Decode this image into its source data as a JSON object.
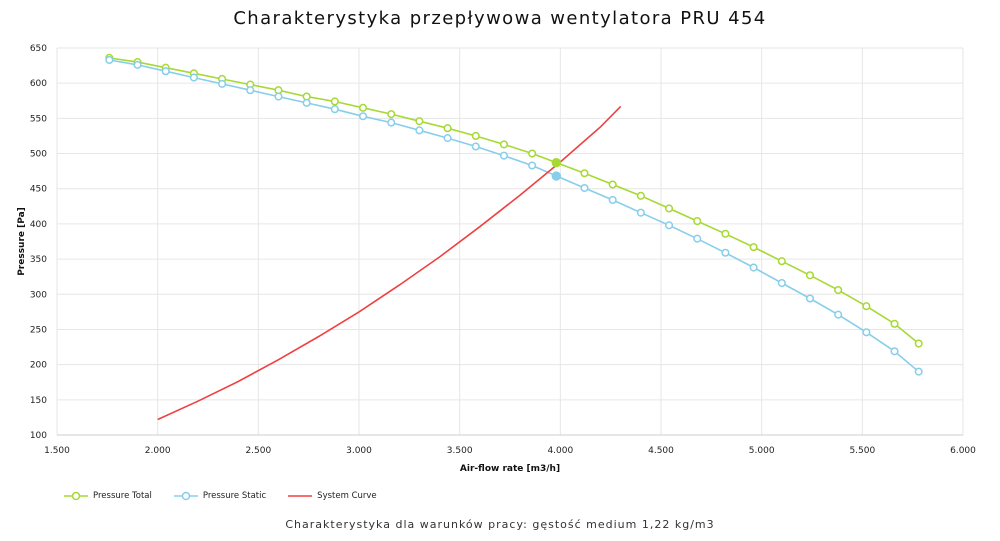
{
  "chart_data": {
    "type": "line",
    "title": "Charakterystyka przepływowa wentylatora PRU 454",
    "subtitle": "Charakterystyka dla warunków pracy: gęstość medium 1,22 kg/m3",
    "xlabel": "Air-flow rate [m3/h]",
    "ylabel": "Pressure [Pa]",
    "xlim": [
      1500,
      6000
    ],
    "ylim": [
      100,
      650
    ],
    "x_ticks": [
      1500,
      2000,
      2500,
      3000,
      3500,
      4000,
      4500,
      5000,
      5500,
      6000
    ],
    "x_tick_labels": [
      "1.500",
      "2.000",
      "2.500",
      "3.000",
      "3.500",
      "4.000",
      "4.500",
      "5.000",
      "5.500",
      "6.000"
    ],
    "y_ticks": [
      100,
      150,
      200,
      250,
      300,
      350,
      400,
      450,
      500,
      550,
      600,
      650
    ],
    "y_tick_labels": [
      "100",
      "150",
      "200",
      "250",
      "300",
      "350",
      "400",
      "450",
      "500",
      "550",
      "600",
      "650"
    ],
    "grid": true,
    "legend_position": "bottom-left",
    "series": [
      {
        "name": "Pressure Total",
        "color": "#a6d933",
        "marker": "circle",
        "x": [
          1760,
          1900,
          2040,
          2180,
          2320,
          2460,
          2600,
          2740,
          2880,
          3020,
          3160,
          3300,
          3440,
          3580,
          3720,
          3860,
          4120,
          4260,
          4400,
          4540,
          4680,
          4820,
          4960,
          5100,
          5240,
          5380,
          5520,
          5660,
          5780
        ],
        "y": [
          636,
          630,
          622,
          614,
          606,
          598,
          590,
          581,
          574,
          565,
          556,
          546,
          536,
          525,
          513,
          500,
          472,
          456,
          440,
          422,
          404,
          386,
          367,
          347,
          327,
          306,
          283,
          258,
          230
        ]
      },
      {
        "name": "Pressure Static",
        "color": "#87ceeb",
        "marker": "circle",
        "x": [
          1760,
          1900,
          2040,
          2180,
          2320,
          2460,
          2600,
          2740,
          2880,
          3020,
          3160,
          3300,
          3440,
          3580,
          3720,
          3860,
          4120,
          4260,
          4400,
          4540,
          4680,
          4820,
          4960,
          5100,
          5240,
          5380,
          5520,
          5660,
          5780
        ],
        "y": [
          633,
          626,
          617,
          608,
          599,
          590,
          581,
          572,
          563,
          553,
          544,
          533,
          522,
          510,
          497,
          483,
          451,
          434,
          416,
          398,
          379,
          359,
          338,
          316,
          294,
          271,
          246,
          219,
          190
        ]
      },
      {
        "name": "System Curve",
        "color": "#f04040",
        "marker": "none",
        "x": [
          2000,
          2200,
          2400,
          2600,
          2800,
          3000,
          3200,
          3400,
          3600,
          3800,
          4000,
          4200,
          4300
        ],
        "y": [
          122,
          148,
          176,
          207,
          240,
          275,
          313,
          353,
          396,
          441,
          488,
          538,
          567
        ]
      }
    ],
    "operating_points": [
      {
        "series": "Pressure Total",
        "x": 3980,
        "y": 487
      },
      {
        "series": "Pressure Static",
        "x": 3980,
        "y": 468
      }
    ]
  }
}
